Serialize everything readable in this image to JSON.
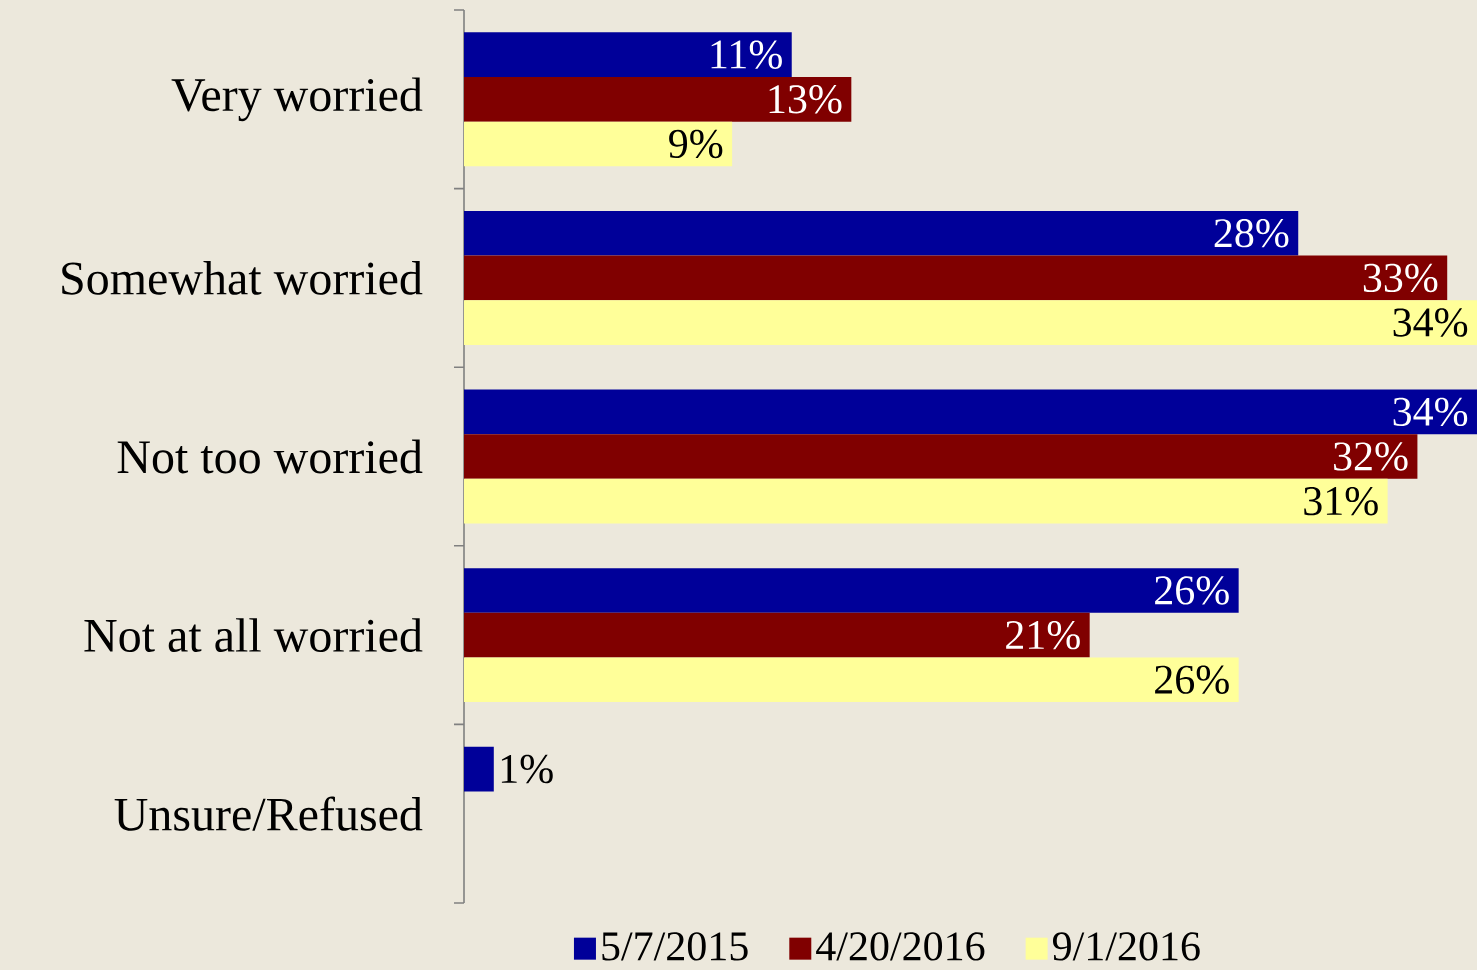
{
  "chart_data": {
    "type": "bar",
    "orientation": "horizontal",
    "categories": [
      "Very worried",
      "Somewhat worried",
      "Not too worried",
      "Not at all worried",
      "Unsure/Refused"
    ],
    "series": [
      {
        "name": "5/7/2015",
        "color": "#000099",
        "values": [
          11,
          28,
          34,
          26,
          1
        ],
        "value_labels": [
          "11%",
          "28%",
          "34%",
          "26%",
          "1%"
        ]
      },
      {
        "name": "4/20/2016",
        "color": "#800000",
        "values": [
          13,
          33,
          32,
          21,
          null
        ],
        "value_labels": [
          "13%",
          "33%",
          "32%",
          "21%",
          null
        ]
      },
      {
        "name": "9/1/2016",
        "color": "#ffff99",
        "values": [
          9,
          34,
          31,
          26,
          null
        ],
        "value_labels": [
          "9%",
          "34%",
          "31%",
          "26%",
          null
        ]
      }
    ],
    "legend": "bottom",
    "grid": false
  }
}
